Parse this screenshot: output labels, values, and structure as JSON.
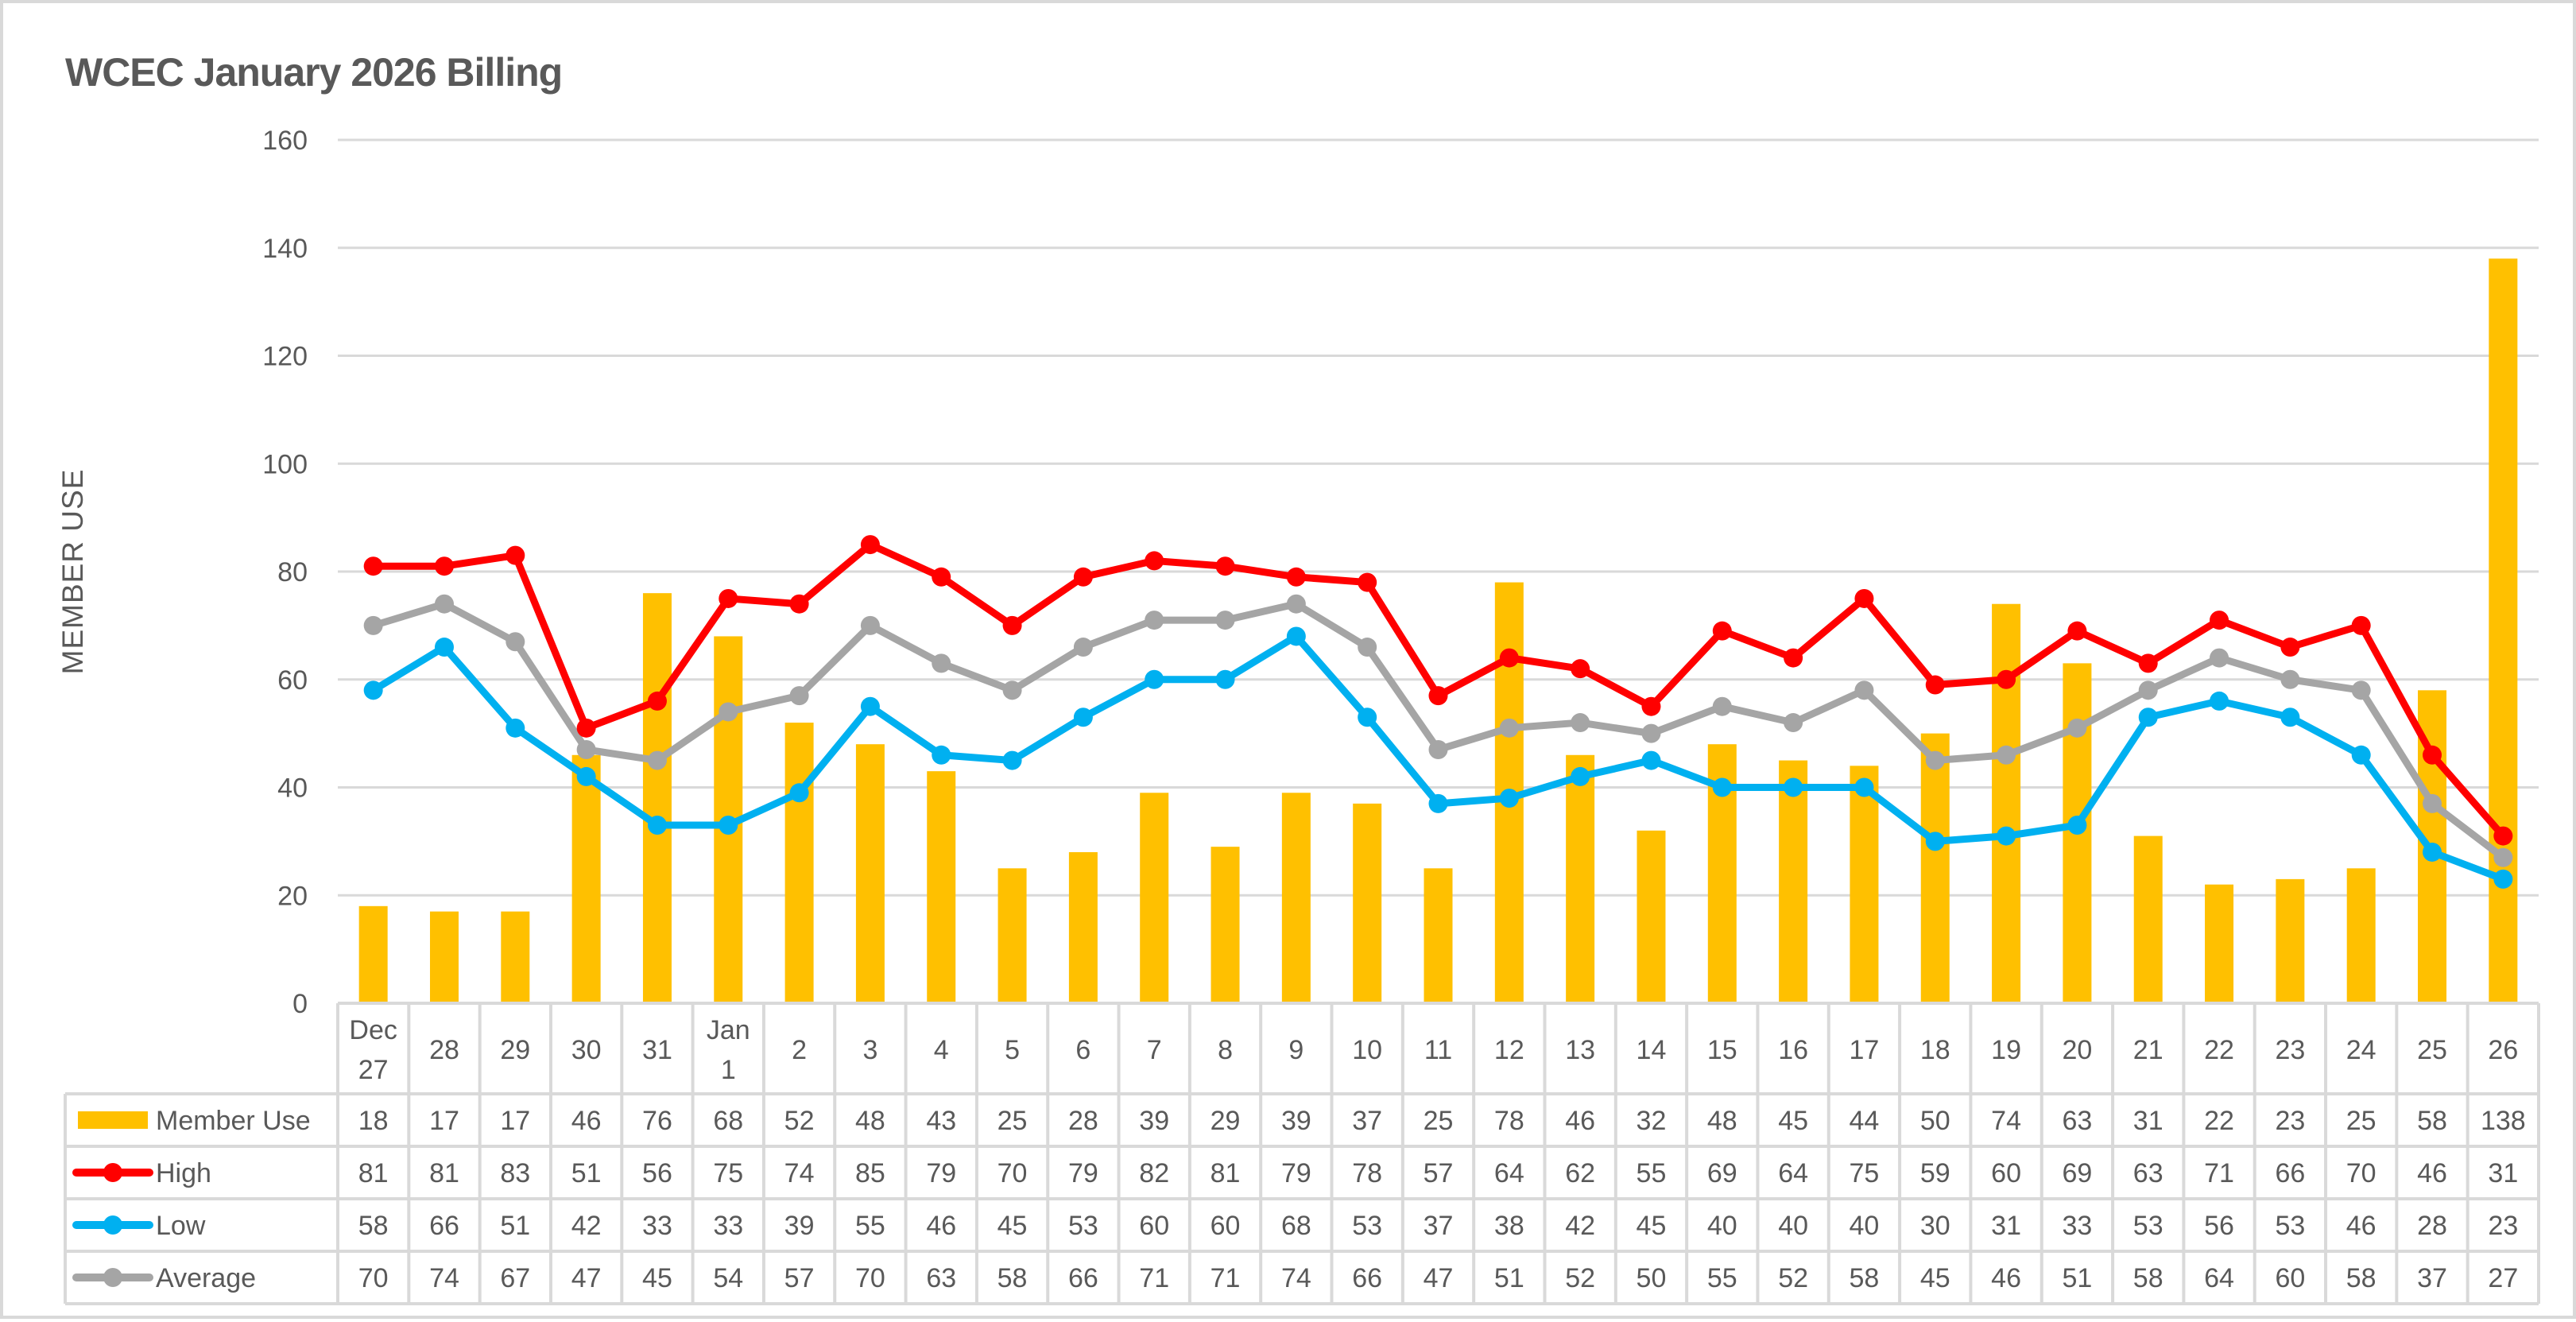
{
  "chart": {
    "title": "WCEC January 2026 Billing",
    "y_axis_title": "MEMBER USE",
    "y_ticks": [
      "0",
      "20",
      "40",
      "60",
      "80",
      "100",
      "120",
      "140",
      "160"
    ],
    "colors": {
      "member_use": "#FFC000",
      "high": "#FF0000",
      "low": "#00B0F0",
      "average": "#A5A5A5",
      "gridline": "#D9D9D9",
      "text": "#595959"
    }
  },
  "chart_data": {
    "type": "bar",
    "title": "WCEC January 2026 Billing",
    "xlabel": "",
    "ylabel": "MEMBER USE",
    "ylim": [
      0,
      160
    ],
    "grid": true,
    "legend_position": "data-table",
    "categories": [
      "Dec 27",
      "28",
      "29",
      "30",
      "31",
      "Jan 1",
      "2",
      "3",
      "4",
      "5",
      "6",
      "7",
      "8",
      "9",
      "10",
      "11",
      "12",
      "13",
      "14",
      "15",
      "16",
      "17",
      "18",
      "19",
      "20",
      "21",
      "22",
      "23",
      "24",
      "25",
      "26"
    ],
    "category_lines": [
      [
        "Dec",
        "27"
      ],
      [
        "28"
      ],
      [
        "29"
      ],
      [
        "30"
      ],
      [
        "31"
      ],
      [
        "Jan",
        "1"
      ],
      [
        "2"
      ],
      [
        "3"
      ],
      [
        "4"
      ],
      [
        "5"
      ],
      [
        "6"
      ],
      [
        "7"
      ],
      [
        "8"
      ],
      [
        "9"
      ],
      [
        "10"
      ],
      [
        "11"
      ],
      [
        "12"
      ],
      [
        "13"
      ],
      [
        "14"
      ],
      [
        "15"
      ],
      [
        "16"
      ],
      [
        "17"
      ],
      [
        "18"
      ],
      [
        "19"
      ],
      [
        "20"
      ],
      [
        "21"
      ],
      [
        "22"
      ],
      [
        "23"
      ],
      [
        "24"
      ],
      [
        "25"
      ],
      [
        "26"
      ]
    ],
    "series": [
      {
        "name": "Member Use",
        "type": "bar",
        "color": "#FFC000",
        "values": [
          18,
          17,
          17,
          46,
          76,
          68,
          52,
          48,
          43,
          25,
          28,
          39,
          29,
          39,
          37,
          25,
          78,
          46,
          32,
          48,
          45,
          44,
          50,
          74,
          63,
          31,
          22,
          23,
          25,
          58,
          138
        ]
      },
      {
        "name": "High",
        "type": "line",
        "color": "#FF0000",
        "values": [
          81,
          81,
          83,
          51,
          56,
          75,
          74,
          85,
          79,
          70,
          79,
          82,
          81,
          79,
          78,
          57,
          64,
          62,
          55,
          69,
          64,
          75,
          59,
          60,
          69,
          63,
          71,
          66,
          70,
          46,
          31
        ]
      },
      {
        "name": "Low",
        "type": "line",
        "color": "#00B0F0",
        "values": [
          58,
          66,
          51,
          42,
          33,
          33,
          39,
          55,
          46,
          45,
          53,
          60,
          60,
          68,
          53,
          37,
          38,
          42,
          45,
          40,
          40,
          40,
          30,
          31,
          33,
          53,
          56,
          53,
          46,
          28,
          23
        ]
      },
      {
        "name": "Average",
        "type": "line",
        "color": "#A5A5A5",
        "values": [
          70,
          74,
          67,
          47,
          45,
          54,
          57,
          70,
          63,
          58,
          66,
          71,
          71,
          74,
          66,
          47,
          51,
          52,
          50,
          55,
          52,
          58,
          45,
          46,
          51,
          58,
          64,
          60,
          58,
          37,
          27
        ]
      }
    ]
  }
}
